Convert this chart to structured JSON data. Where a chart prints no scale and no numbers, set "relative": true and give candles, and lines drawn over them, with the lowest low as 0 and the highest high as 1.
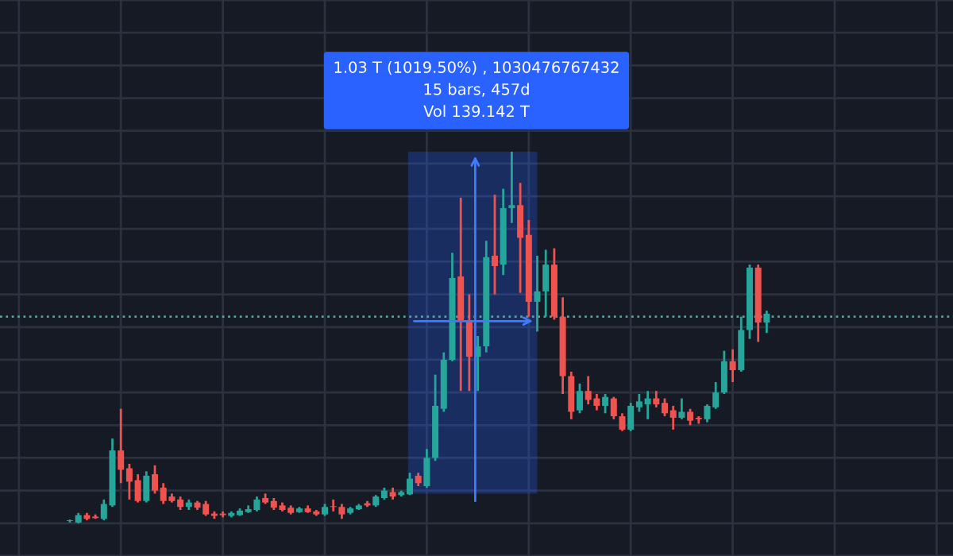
{
  "chart_data": {
    "type": "candlestick",
    "relative": true,
    "grid": true,
    "annotations": [
      "1.03 T (1019.50%) , 1030476767432",
      "15 bars, 457d",
      "Vol 139.142 T"
    ],
    "categories": [
      null,
      null,
      null,
      null,
      null,
      null,
      null,
      null,
      null,
      null,
      null,
      null,
      null,
      null,
      null,
      null,
      null,
      null,
      null,
      null,
      null,
      null,
      null,
      null,
      null,
      null,
      null,
      null,
      null,
      null,
      null,
      null,
      null,
      null,
      null,
      null,
      null,
      null,
      null,
      null,
      null,
      null,
      null,
      null,
      null,
      null,
      null,
      null,
      null,
      null,
      null,
      null,
      null,
      null,
      null,
      null,
      null,
      null,
      null,
      null,
      null,
      null,
      null,
      null,
      null,
      null,
      null,
      null,
      null,
      null,
      null,
      null,
      null,
      null,
      null,
      null,
      null,
      null,
      null,
      null,
      null,
      null,
      null
    ],
    "ohlc": [
      [
        0.006,
        0.01,
        0.002,
        0.008
      ],
      [
        0.002,
        0.028,
        0,
        0.022
      ],
      [
        0.022,
        0.028,
        0.008,
        0.012
      ],
      [
        0.018,
        0.024,
        0.012,
        0.014
      ],
      [
        0.012,
        0.064,
        0.008,
        0.052
      ],
      [
        0.048,
        0.228,
        0.044,
        0.196
      ],
      [
        0.196,
        0.308,
        0.108,
        0.144
      ],
      [
        0.148,
        0.16,
        0.064,
        0.112
      ],
      [
        0.116,
        0.132,
        0.056,
        0.06
      ],
      [
        0.06,
        0.14,
        0.056,
        0.128
      ],
      [
        0.132,
        0.156,
        0.08,
        0.088
      ],
      [
        0.096,
        0.108,
        0.052,
        0.06
      ],
      [
        0.072,
        0.08,
        0.056,
        0.06
      ],
      [
        0.064,
        0.072,
        0.036,
        0.044
      ],
      [
        0.044,
        0.064,
        0.036,
        0.056
      ],
      [
        0.056,
        0.06,
        0.036,
        0.042
      ],
      [
        0.052,
        0.06,
        0.02,
        0.024
      ],
      [
        0.026,
        0.032,
        0.012,
        0.02
      ],
      [
        0.026,
        0.032,
        0.016,
        0.022
      ],
      [
        0.02,
        0.032,
        0.016,
        0.028
      ],
      [
        0.022,
        0.04,
        0.02,
        0.034
      ],
      [
        0.03,
        0.048,
        0.028,
        0.038
      ],
      [
        0.036,
        0.072,
        0.032,
        0.064
      ],
      [
        0.068,
        0.08,
        0.052,
        0.056
      ],
      [
        0.06,
        0.068,
        0.036,
        0.042
      ],
      [
        0.048,
        0.056,
        0.032,
        0.036
      ],
      [
        0.042,
        0.048,
        0.024,
        0.028
      ],
      [
        0.03,
        0.044,
        0.028,
        0.04
      ],
      [
        0.04,
        0.048,
        0.028,
        0.03
      ],
      [
        0.032,
        0.036,
        0.02,
        0.024
      ],
      [
        0.024,
        0.052,
        0.02,
        0.044
      ],
      [
        0.046,
        0.064,
        0.032,
        0.044
      ],
      [
        0.044,
        0.052,
        0.012,
        0.024
      ],
      [
        0.028,
        0.044,
        0.024,
        0.04
      ],
      [
        0.038,
        0.052,
        0.036,
        0.048
      ],
      [
        0.054,
        0.06,
        0.044,
        0.048
      ],
      [
        0.048,
        0.076,
        0.044,
        0.072
      ],
      [
        0.068,
        0.096,
        0.064,
        0.088
      ],
      [
        0.084,
        0.096,
        0.064,
        0.072
      ],
      [
        0.076,
        0.088,
        0.072,
        0.084
      ],
      [
        0.078,
        0.136,
        0.076,
        0.12
      ],
      [
        0.128,
        0.136,
        0.1,
        0.108
      ],
      [
        0.1,
        0.2,
        0.096,
        0.176
      ],
      [
        0.176,
        0.4,
        0.168,
        0.316
      ],
      [
        0.308,
        0.46,
        0.3,
        0.44
      ],
      [
        0.44,
        0.728,
        0.436,
        0.66
      ],
      [
        0.664,
        0.876,
        0.356,
        0.544
      ],
      [
        0.544,
        0.616,
        0.356,
        0.448
      ],
      [
        0.448,
        0.504,
        0.356,
        0.476
      ],
      [
        0.476,
        0.76,
        0.46,
        0.716
      ],
      [
        0.72,
        0.884,
        0.616,
        0.692
      ],
      [
        0.696,
        0.9,
        0.668,
        0.848
      ],
      [
        0.848,
        1,
        0.808,
        0.856
      ],
      [
        0.856,
        0.916,
        0.62,
        0.768
      ],
      [
        0.776,
        0.816,
        0.556,
        0.596
      ],
      [
        0.596,
        0.72,
        0.516,
        0.624
      ],
      [
        0.624,
        0.736,
        0.556,
        0.696
      ],
      [
        0.696,
        0.74,
        0.548,
        0.556
      ],
      [
        0.556,
        0.608,
        0.348,
        0.396
      ],
      [
        0.396,
        0.408,
        0.28,
        0.3
      ],
      [
        0.304,
        0.376,
        0.296,
        0.356
      ],
      [
        0.356,
        0.396,
        0.32,
        0.332
      ],
      [
        0.336,
        0.348,
        0.304,
        0.316
      ],
      [
        0.316,
        0.348,
        0.296,
        0.34
      ],
      [
        0.336,
        0.34,
        0.28,
        0.288
      ],
      [
        0.288,
        0.296,
        0.248,
        0.252
      ],
      [
        0.252,
        0.324,
        0.248,
        0.316
      ],
      [
        0.312,
        0.348,
        0.3,
        0.328
      ],
      [
        0.32,
        0.356,
        0.28,
        0.336
      ],
      [
        0.336,
        0.356,
        0.312,
        0.32
      ],
      [
        0.324,
        0.336,
        0.288,
        0.296
      ],
      [
        0.304,
        0.316,
        0.252,
        0.284
      ],
      [
        0.284,
        0.336,
        0.28,
        0.3
      ],
      [
        0.3,
        0.308,
        0.264,
        0.276
      ],
      [
        0.284,
        0.288,
        0.268,
        0.28
      ],
      [
        0.28,
        0.32,
        0.272,
        0.316
      ],
      [
        0.312,
        0.38,
        0.308,
        0.352
      ],
      [
        0.352,
        0.464,
        0.348,
        0.436
      ],
      [
        0.436,
        0.468,
        0.38,
        0.412
      ],
      [
        0.412,
        0.556,
        0.408,
        0.52
      ],
      [
        0.52,
        0.696,
        0.496,
        0.688
      ],
      [
        0.688,
        0.696,
        0.488,
        0.54
      ],
      [
        0.54,
        0.572,
        0.512,
        0.564
      ]
    ],
    "colors": [
      "#26a69a",
      "#26a69a",
      "#ef5350",
      "#ef5350",
      "#26a69a",
      "#26a69a",
      "#ef5350",
      "#ef5350",
      "#ef5350",
      "#26a69a",
      "#ef5350",
      "#ef5350",
      "#ef5350",
      "#ef5350",
      "#26a69a",
      "#ef5350",
      "#ef5350",
      "#ef5350",
      "#ef5350",
      "#26a69a",
      "#26a69a",
      "#26a69a",
      "#26a69a",
      "#ef5350",
      "#ef5350",
      "#ef5350",
      "#ef5350",
      "#26a69a",
      "#ef5350",
      "#ef5350",
      "#26a69a",
      "#ef5350",
      "#ef5350",
      "#26a69a",
      "#26a69a",
      "#ef5350",
      "#26a69a",
      "#26a69a",
      "#ef5350",
      "#26a69a",
      "#26a69a",
      "#ef5350",
      "#26a69a",
      "#26a69a",
      "#26a69a",
      "#26a69a",
      "#ef5350",
      "#ef5350",
      "#26a69a",
      "#26a69a",
      "#ef5350",
      "#26a69a",
      "#26a69a",
      "#ef5350",
      "#ef5350",
      "#26a69a",
      "#26a69a",
      "#ef5350",
      "#ef5350",
      "#ef5350",
      "#26a69a",
      "#ef5350",
      "#ef5350",
      "#26a69a",
      "#ef5350",
      "#ef5350",
      "#26a69a",
      "#26a69a",
      "#26a69a",
      "#ef5350",
      "#ef5350",
      "#ef5350",
      "#26a69a",
      "#ef5350",
      "#ef5350",
      "#26a69a",
      "#26a69a",
      "#26a69a",
      "#ef5350",
      "#26a69a",
      "#26a69a",
      "#ef5350",
      "#26a69a"
    ],
    "ref_lines": [
      {
        "axis": "y",
        "value": 0.556,
        "line_style": "dotted",
        "color": "#4fa3a0"
      }
    ]
  }
}
